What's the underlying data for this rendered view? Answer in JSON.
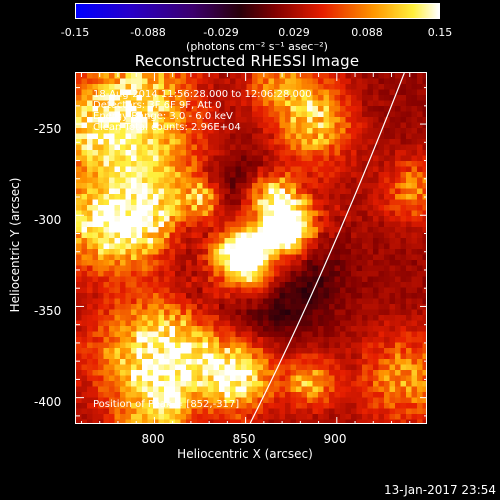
{
  "colorbar": {
    "ticks": [
      "-0.15",
      "-0.088",
      "-0.029",
      "0.029",
      "0.088",
      "0.15"
    ],
    "unit": "(photons cm⁻² s⁻¹ asec⁻²)",
    "min": -0.15,
    "max": 0.15
  },
  "chart_data": {
    "type": "heatmap",
    "title": "Reconstructed RHESSI Image",
    "xlabel": "Heliocentric X (arcsec)",
    "ylabel": "Heliocentric Y (arcsec)",
    "xlim": [
      757,
      950
    ],
    "ylim": [
      -415,
      -222
    ],
    "xticks": [
      800,
      850,
      900
    ],
    "yticks": [
      -250,
      -300,
      -350,
      -400
    ],
    "peak": [
      852,
      -317
    ],
    "colormap": "blue-purple-red-yellow-white (IDL color table)",
    "info_lines": [
      "18-Aug-2014 11:56:28.000 to 12:06:28.000",
      "Detectors: 3F 6F 9F, Att 0",
      "Energy Range: 3.0 - 6.0 keV",
      "Clean    Total counts: 2.96E+04"
    ],
    "peak_label": "Position of Peak = [852,-317]",
    "limb": true
  },
  "footer": "13-Jan-2017 23:54"
}
